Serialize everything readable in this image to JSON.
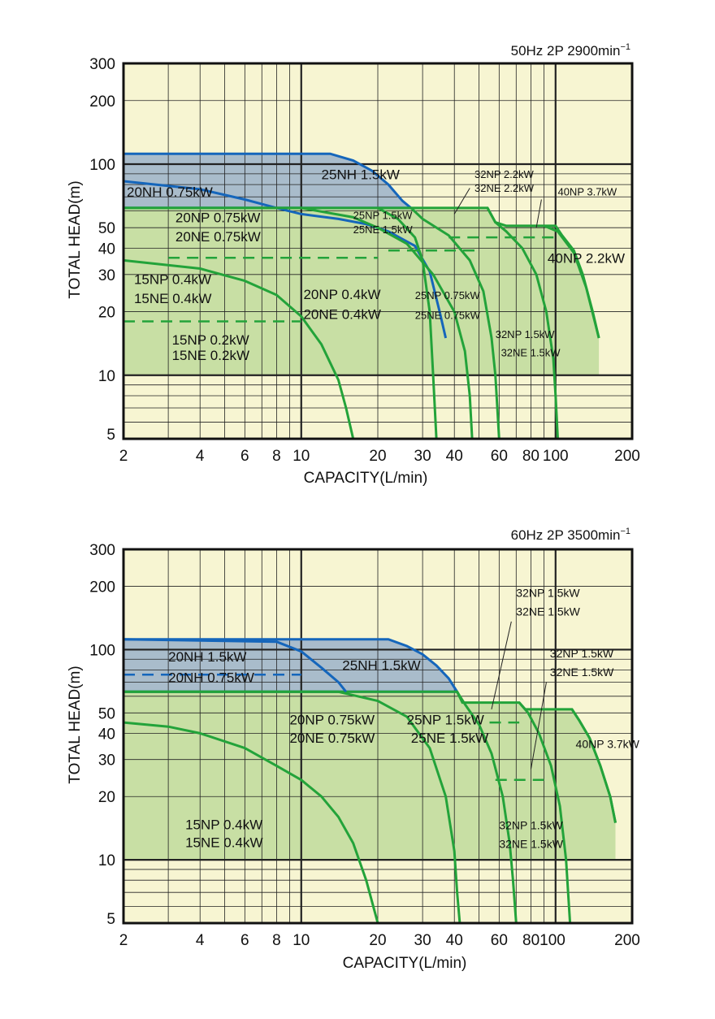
{
  "chart_data": [
    {
      "type": "area",
      "condition": "50Hz 2P 2900min",
      "condition_exp": "−1",
      "xlabel": "CAPACITY(L/min)",
      "ylabel": "TOTAL HEAD(m)",
      "xscale": "log",
      "yscale": "log",
      "xlim": [
        2,
        200
      ],
      "ylim": [
        5,
        300
      ],
      "x_tick_labels": [
        "2",
        "4",
        "6",
        "8",
        "10",
        "20",
        "30",
        "40",
        "60",
        "80",
        "100",
        "200"
      ],
      "y_tick_labels": [
        "5",
        "10",
        "20",
        "30",
        "40",
        "50",
        "100",
        "200",
        "300"
      ],
      "grid": true,
      "colors": {
        "plot_bg": "#f7f5d2",
        "green_fill": "#c8dfa4",
        "green_line": "#23a33a",
        "blue_fill": "#a9bccb",
        "blue_line": "#1566bb"
      },
      "regions": [
        {
          "color": "blue",
          "outline": [
            [
              2,
              112
            ],
            [
              13,
              112
            ],
            [
              16,
              104
            ],
            [
              19,
              93
            ],
            [
              22,
              80
            ],
            [
              25,
              67
            ],
            [
              27,
              62
            ],
            [
              2,
              62
            ]
          ]
        },
        {
          "color": "green",
          "outline": [
            [
              2,
              62
            ],
            [
              54,
              62
            ],
            [
              58,
              53
            ],
            [
              64,
              51
            ],
            [
              90,
              51
            ],
            [
              100,
              51
            ],
            [
              106,
              46
            ],
            [
              118,
              39
            ],
            [
              128,
              30
            ],
            [
              140,
              20
            ],
            [
              148,
              15
            ],
            [
              148,
              10
            ],
            [
              2,
              10
            ]
          ]
        }
      ],
      "series": [
        {
          "curve": [
            [
              2,
              83
            ],
            [
              4,
              76
            ],
            [
              6,
              68
            ],
            [
              8,
              62
            ],
            [
              10,
              58
            ],
            [
              14,
              55
            ],
            [
              18,
              52
            ],
            [
              22,
              48
            ],
            [
              28,
              41
            ],
            [
              32,
              31
            ],
            [
              35,
              20
            ],
            [
              37,
              15
            ]
          ]
        },
        {
          "curve": [
            [
              2,
              62
            ],
            [
              10,
              62
            ],
            [
              16,
              56
            ],
            [
              20,
              50
            ],
            [
              26,
              42
            ],
            [
              33,
              30
            ],
            [
              40,
              20
            ],
            [
              44,
              13
            ],
            [
              46,
              8
            ],
            [
              47,
              5
            ]
          ]
        },
        {
          "curve": [
            [
              2,
              35
            ],
            [
              4,
              32
            ],
            [
              6,
              28
            ],
            [
              8,
              24
            ],
            [
              10,
              19
            ],
            [
              12,
              14
            ],
            [
              14,
              9.5
            ],
            [
              15,
              7
            ],
            [
              16,
              5
            ]
          ]
        },
        {
          "curve": [
            [
              27,
              62
            ],
            [
              30,
              55
            ],
            [
              38,
              46
            ],
            [
              46,
              35
            ],
            [
              52,
              25
            ],
            [
              56,
              15
            ],
            [
              58,
              10
            ],
            [
              59,
              7
            ],
            [
              60,
              5
            ]
          ]
        },
        {
          "curve": [
            [
              54,
              62
            ],
            [
              58,
              53
            ],
            [
              64,
              48
            ],
            [
              74,
              40
            ],
            [
              84,
              30
            ],
            [
              92,
              20
            ],
            [
              98,
              12
            ],
            [
              100,
              8
            ],
            [
              102,
              5
            ]
          ]
        },
        {
          "curve": [
            [
              20,
              62
            ],
            [
              24,
              55
            ],
            [
              28,
              45
            ],
            [
              30,
              35
            ],
            [
              32,
              20
            ],
            [
              33,
              10
            ],
            [
              34,
              5
            ]
          ]
        },
        {
          "curve": [
            [
              90,
              51
            ],
            [
              102,
              48
            ],
            [
              118,
              38
            ],
            [
              132,
              26
            ],
            [
              148,
              15
            ]
          ]
        }
      ],
      "dashed": [
        {
          "y": 45,
          "x": [
            38,
            100
          ]
        },
        {
          "y": 39,
          "x": [
            22,
            50
          ]
        },
        {
          "y": 36,
          "x": [
            3,
            20
          ]
        },
        {
          "y": 18,
          "x": [
            2,
            10
          ]
        }
      ],
      "annotations": [
        {
          "text": "25NH 1.5kW",
          "at": [
            12,
            85
          ]
        },
        {
          "text": "20NH 0.75kW",
          "at": [
            2.06,
            70
          ]
        },
        {
          "text": "20NP 0.75kW",
          "at": [
            3.2,
            53
          ]
        },
        {
          "text": "20NE 0.75kW",
          "at": [
            3.2,
            43
          ]
        },
        {
          "text": "15NP 0.4kW",
          "at": [
            2.2,
            27
          ]
        },
        {
          "text": "15NE 0.4kW",
          "at": [
            2.2,
            22
          ]
        },
        {
          "text": "15NP 0.2kW",
          "at": [
            3.1,
            14
          ]
        },
        {
          "text": "15NE 0.2kW",
          "at": [
            3.1,
            11.8
          ]
        },
        {
          "text": "20NP 0.4kW",
          "at": [
            10.2,
            23
          ]
        },
        {
          "text": "20NE 0.4kW",
          "at": [
            10.2,
            18.5
          ]
        },
        {
          "text": "25NP 1.5kW",
          "at": [
            16,
            55
          ]
        },
        {
          "text": "25NE 1.5kW",
          "at": [
            16,
            47
          ]
        },
        {
          "text": "25NP 0.75kW",
          "at": [
            28,
            23
          ]
        },
        {
          "text": "25NE 0.75kW",
          "at": [
            28,
            18.5
          ]
        },
        {
          "text": "32NP 2.2kW",
          "at": [
            48,
            86
          ]
        },
        {
          "text": "32NE 2.2kW",
          "at": [
            48,
            74
          ]
        },
        {
          "text": "40NP 3.7kW",
          "at": [
            102,
            71
          ]
        },
        {
          "text": "40NP 2.2kW",
          "at": [
            93,
            34
          ]
        },
        {
          "text": "32NP 1.5kW",
          "at": [
            58,
            15
          ]
        },
        {
          "text": "32NE 1.5kW",
          "at": [
            61,
            12.3
          ]
        }
      ],
      "leader_lines": [
        [
          [
            46,
            77
          ],
          [
            40,
            58
          ]
        ],
        [
          [
            88,
            68
          ],
          [
            84,
            50
          ]
        ]
      ]
    },
    {
      "type": "area",
      "condition": "60Hz 2P 3500min",
      "condition_exp": "−1",
      "xlabel": "CAPACITY(L/min)",
      "ylabel": "TOTAL HEAD(m)",
      "xscale": "log",
      "yscale": "log",
      "xlim": [
        2,
        200
      ],
      "ylim": [
        5,
        300
      ],
      "x_tick_labels": [
        "2",
        "4",
        "6",
        "8",
        "10",
        "20",
        "30",
        "40",
        "60",
        "80100",
        "200"
      ],
      "y_tick_labels": [
        "5",
        "10",
        "20",
        "30",
        "40",
        "50",
        "100",
        "200",
        "300"
      ],
      "grid": true,
      "colors": {
        "plot_bg": "#f7f5d2",
        "green_fill": "#c8dfa4",
        "green_line": "#23a33a",
        "blue_fill": "#a9bccb",
        "blue_line": "#1566bb"
      },
      "regions": [
        {
          "color": "blue",
          "outline": [
            [
              2,
              112
            ],
            [
              22,
              112
            ],
            [
              26,
              104
            ],
            [
              30,
              95
            ],
            [
              34,
              84
            ],
            [
              38,
              73
            ],
            [
              41,
              63
            ],
            [
              2,
              63
            ]
          ]
        },
        {
          "color": "green",
          "outline": [
            [
              2,
              63
            ],
            [
              41,
              63
            ],
            [
              43,
              56
            ],
            [
              72,
              56
            ],
            [
              76,
              52
            ],
            [
              116,
              52
            ],
            [
              124,
              46
            ],
            [
              136,
              38
            ],
            [
              150,
              28
            ],
            [
              164,
              20
            ],
            [
              172,
              15
            ],
            [
              172,
              10
            ],
            [
              2,
              10
            ]
          ]
        }
      ],
      "series": [
        {
          "curve": [
            [
              2,
              112
            ],
            [
              8,
              109
            ],
            [
              10,
              98
            ],
            [
              12,
              82
            ],
            [
              14,
              70
            ],
            [
              15,
              63
            ]
          ]
        },
        {
          "curve": [
            [
              2,
              63
            ],
            [
              14,
              63
            ],
            [
              20,
              57
            ],
            [
              26,
              48
            ],
            [
              32,
              34
            ],
            [
              37,
              20
            ],
            [
              40,
              11
            ],
            [
              41,
              7
            ],
            [
              42,
              5
            ]
          ]
        },
        {
          "curve": [
            [
              2,
              45
            ],
            [
              3,
              43
            ],
            [
              4,
              40
            ],
            [
              6,
              34
            ],
            [
              8,
              28
            ],
            [
              10,
              24
            ],
            [
              12,
              20
            ],
            [
              14,
              16
            ],
            [
              16,
              12
            ],
            [
              18,
              8
            ],
            [
              20,
              5
            ]
          ]
        },
        {
          "curve": [
            [
              41,
              63
            ],
            [
              44,
              55
            ],
            [
              50,
              44
            ],
            [
              56,
              32
            ],
            [
              62,
              20
            ],
            [
              66,
              12
            ],
            [
              68,
              8
            ],
            [
              70,
              5
            ]
          ]
        },
        {
          "curve": [
            [
              72,
              56
            ],
            [
              78,
              50
            ],
            [
              86,
              40
            ],
            [
              96,
              28
            ],
            [
              104,
              18
            ],
            [
              110,
              10
            ],
            [
              112,
              7
            ],
            [
              114,
              5
            ]
          ]
        },
        {
          "curve": [
            [
              116,
              52
            ],
            [
              124,
              46
            ],
            [
              136,
              38
            ],
            [
              150,
              28
            ],
            [
              164,
              20
            ],
            [
              172,
              15
            ]
          ]
        }
      ],
      "dashed": [
        {
          "y": 76,
          "x": [
            2,
            10
          ]
        },
        {
          "y": 45,
          "x": [
            55,
            72
          ]
        },
        {
          "y": 24,
          "x": [
            58,
            90
          ]
        }
      ],
      "annotations": [
        {
          "text": "20NH 1.5kW",
          "at": [
            3.0,
            88
          ]
        },
        {
          "text": "20NH 0.75kW",
          "at": [
            3.0,
            70
          ]
        },
        {
          "text": "25NH 1.5kW",
          "at": [
            14.5,
            80
          ]
        },
        {
          "text": "20NP 0.75kW",
          "at": [
            9,
            44
          ]
        },
        {
          "text": "20NE 0.75kW",
          "at": [
            9,
            36
          ]
        },
        {
          "text": "25NP 1.5kW",
          "at": [
            26,
            44
          ]
        },
        {
          "text": "25NE 1.5kW",
          "at": [
            27,
            36
          ]
        },
        {
          "text": "32NP 1.5kW",
          "at": [
            70,
            178
          ]
        },
        {
          "text": "32NE 1.5kW",
          "at": [
            70,
            145
          ]
        },
        {
          "text": "32NP 1.5kW",
          "at": [
            95,
            92
          ]
        },
        {
          "text": "32NE 1.5kW",
          "at": [
            95,
            75
          ]
        },
        {
          "text": "40NP 3.7kW",
          "at": [
            120,
            34
          ]
        },
        {
          "text": "15NP 0.4kW",
          "at": [
            3.5,
            14
          ]
        },
        {
          "text": "15NE 0.4kW",
          "at": [
            3.5,
            11.5
          ]
        },
        {
          "text": "32NP 1.5kW",
          "at": [
            60,
            14
          ]
        },
        {
          "text": "32NE 1.5kW",
          "at": [
            60,
            11.4
          ]
        }
      ],
      "leader_lines": [
        [
          [
            67,
            136
          ],
          [
            56,
            52
          ]
        ],
        [
          [
            92,
            70
          ],
          [
            80,
            27
          ]
        ]
      ]
    }
  ]
}
